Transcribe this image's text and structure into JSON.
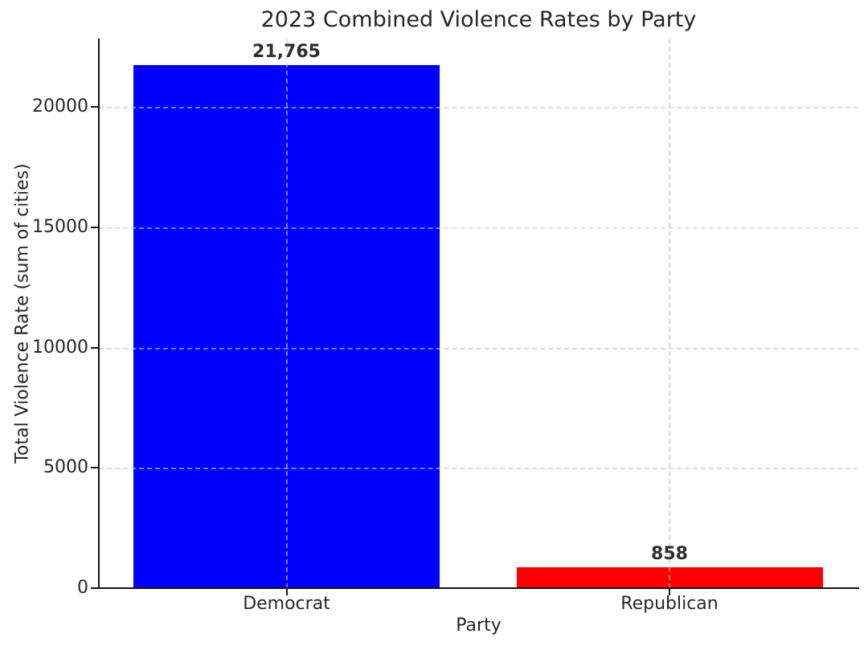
{
  "chart_data": {
    "type": "bar",
    "title": "2023 Combined Violence Rates by Party",
    "xlabel": "Party",
    "ylabel": "Total Violence Rate (sum of cities)",
    "categories": [
      "Democrat",
      "Republican"
    ],
    "values": [
      21765,
      858
    ],
    "value_labels": [
      "21,765",
      "858"
    ],
    "bar_colors": [
      "#0000ff",
      "#ff0000"
    ],
    "ylim": [
      0,
      22853
    ],
    "yticks": [
      0,
      5000,
      10000,
      15000,
      20000
    ],
    "ytick_labels": [
      "0",
      "5000",
      "10000",
      "15000",
      "20000"
    ],
    "grid": {
      "visible": true,
      "axes": "both",
      "line_style": "dashed",
      "color": "#cccccc",
      "drawn_above_bars": true
    },
    "legend": null,
    "colors": {
      "spine": "#151515",
      "text": "#262626",
      "value_label_text": "#2e2e2e",
      "background": "#ffffff"
    }
  }
}
